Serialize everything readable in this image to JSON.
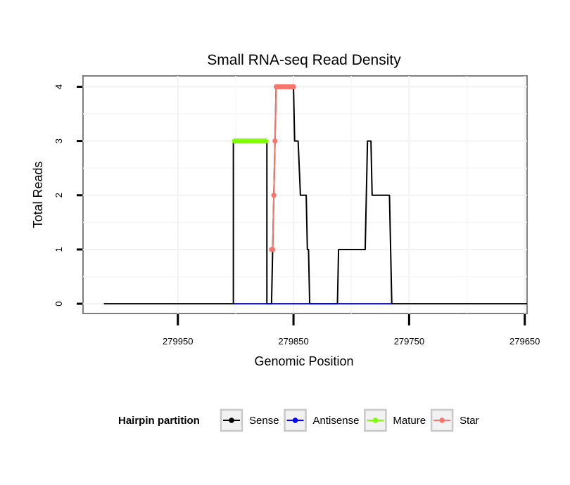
{
  "chart_data": {
    "type": "line",
    "title": "Small RNA-seq Read Density",
    "xlabel": "Genomic Position",
    "ylabel": "Total Reads",
    "x_reversed": true,
    "xlim": [
      280032,
      279648
    ],
    "ylim": [
      -0.18,
      4.2
    ],
    "x_ticks": [
      279950,
      279850,
      279750,
      279650
    ],
    "y_ticks": [
      0,
      1,
      2,
      3,
      4
    ],
    "grid": true,
    "legend": {
      "title": "Hairpin partition",
      "position": "bottom",
      "entries": [
        "Sense",
        "Antisense",
        "Mature",
        "Star"
      ]
    },
    "series": [
      {
        "name": "Sense",
        "color": "#000000",
        "marker": false,
        "points": [
          [
            280014,
            0
          ],
          [
            279902,
            0
          ],
          [
            279902,
            3
          ],
          [
            279873,
            3
          ],
          [
            279873,
            0
          ],
          [
            279869,
            0
          ],
          [
            279865,
            4
          ],
          [
            279850,
            4
          ],
          [
            279849,
            3
          ],
          [
            279846,
            3
          ],
          [
            279844,
            2
          ],
          [
            279839,
            2
          ],
          [
            279838,
            1
          ],
          [
            279837,
            1
          ],
          [
            279836,
            0
          ],
          [
            279812,
            0
          ],
          [
            279811,
            1
          ],
          [
            279788,
            1
          ],
          [
            279786,
            3
          ],
          [
            279783,
            3
          ],
          [
            279782,
            2
          ],
          [
            279767,
            2
          ],
          [
            279765,
            0
          ],
          [
            279648,
            0
          ]
        ]
      },
      {
        "name": "Antisense",
        "color": "#0000ff",
        "marker": false,
        "points": [
          [
            279902,
            0
          ],
          [
            279765,
            0
          ]
        ]
      },
      {
        "name": "Mature",
        "color": "#7fff00",
        "marker": true,
        "points": [
          [
            279901,
            3
          ],
          [
            279874,
            3
          ]
        ]
      },
      {
        "name": "Star",
        "color": "#f8766d",
        "marker": true,
        "points": [
          [
            279869,
            1
          ],
          [
            279868,
            1
          ],
          [
            279867,
            2
          ],
          [
            279866,
            3
          ],
          [
            279865,
            4
          ],
          [
            279850,
            4
          ]
        ]
      }
    ]
  }
}
